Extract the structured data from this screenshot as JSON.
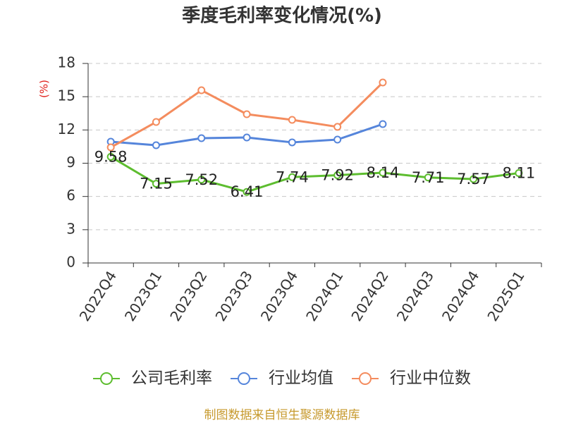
{
  "chart_data": {
    "type": "line",
    "title": "季度毛利率变化情况(%)",
    "ylabel": "(%)",
    "categories": [
      "2022Q4",
      "2023Q1",
      "2023Q2",
      "2023Q3",
      "2023Q4",
      "2024Q1",
      "2024Q2",
      "2024Q3",
      "2024Q4",
      "2025Q1"
    ],
    "ylim": [
      0,
      18
    ],
    "yticks": [
      0,
      3,
      6,
      9,
      12,
      15,
      18
    ],
    "grid": true,
    "legend_position": "bottom",
    "series": [
      {
        "name": "公司毛利率",
        "color": "#5dbd2f",
        "show_labels": true,
        "values": [
          9.58,
          7.15,
          7.52,
          6.41,
          7.74,
          7.92,
          8.14,
          7.71,
          7.57,
          8.11
        ]
      },
      {
        "name": "行业均值",
        "color": "#5585db",
        "show_labels": false,
        "values": [
          10.94,
          10.62,
          11.26,
          11.32,
          10.88,
          11.13,
          12.53,
          null,
          null,
          null
        ]
      },
      {
        "name": "行业中位数",
        "color": "#f48c5e",
        "show_labels": false,
        "values": [
          10.43,
          12.72,
          15.58,
          13.42,
          12.91,
          12.28,
          16.28,
          null,
          null,
          null
        ]
      }
    ]
  },
  "footer": {
    "source_note": "制图数据来自恒生聚源数据库"
  },
  "colors": {
    "ylabel": "#e0201a",
    "source_note": "#c79a2e"
  }
}
